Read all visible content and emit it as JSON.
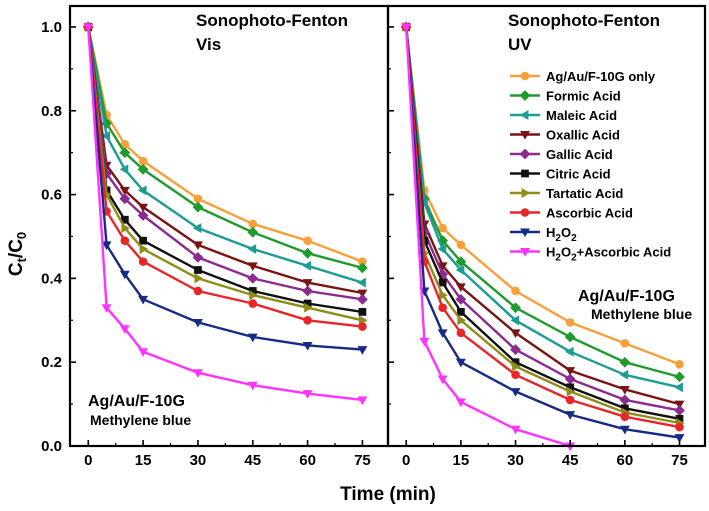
{
  "chart_data": {
    "type": "line",
    "ylabel": "C",
    "ylabel_sub1": "t",
    "ylabel_slash": "/C",
    "ylabel_sub2": "0",
    "xlabel": "Time (min)",
    "x": [
      0,
      5,
      10,
      15,
      30,
      45,
      60,
      75
    ],
    "xlim": [
      -5,
      82
    ],
    "ylim": [
      0,
      1.05
    ],
    "xticks": [
      "0",
      "15",
      "30",
      "45",
      "60",
      "75"
    ],
    "yticks": [
      "0.0",
      "0.2",
      "0.4",
      "0.6",
      "0.8",
      "1.0"
    ],
    "series_style": [
      {
        "color": "#f7a03a",
        "marker": "circle"
      },
      {
        "color": "#1e9b2c",
        "marker": "diamond"
      },
      {
        "color": "#1c9c95",
        "marker": "triangle-left"
      },
      {
        "color": "#7a1414",
        "marker": "triangle-down"
      },
      {
        "color": "#8b2a8f",
        "marker": "diamond"
      },
      {
        "color": "#111111",
        "marker": "square"
      },
      {
        "color": "#8d8d18",
        "marker": "triangle-right"
      },
      {
        "color": "#e8262a",
        "marker": "circle"
      },
      {
        "color": "#162a86",
        "marker": "triangle-down"
      },
      {
        "color": "#ff33ff",
        "marker": "triangle-down"
      }
    ],
    "legend": {
      "placement": "right panel, top-right",
      "entries": [
        {
          "text": "Ag/Au/F-10G only"
        },
        {
          "text": "Formic Acid"
        },
        {
          "text": "Maleic Acid"
        },
        {
          "text": "Oxallic Acid"
        },
        {
          "text": "Gallic Acid"
        },
        {
          "text": "Citric Acid"
        },
        {
          "text": "Tartatic Acid"
        },
        {
          "text": "Ascorbic Acid"
        },
        {
          "text": "H",
          "sub": "2",
          "rest": "O",
          "sub2": "2",
          "tail": ""
        },
        {
          "text": "H",
          "sub": "2",
          "rest": "O",
          "sub2": "2",
          "tail": "+Ascorbic Acid"
        }
      ]
    },
    "panels": [
      {
        "title_line1": "Sonophoto-Fenton",
        "title_line2": "Vis",
        "anno_line1": "Ag/Au/F-10G",
        "anno_line2": "Methylene blue",
        "series": [
          {
            "values": [
              1.0,
              0.79,
              0.72,
              0.68,
              0.59,
              0.53,
              0.49,
              0.44
            ]
          },
          {
            "values": [
              1.0,
              0.77,
              0.7,
              0.66,
              0.57,
              0.51,
              0.46,
              0.425
            ]
          },
          {
            "values": [
              1.0,
              0.74,
              0.66,
              0.61,
              0.52,
              0.47,
              0.43,
              0.39
            ]
          },
          {
            "values": [
              1.0,
              0.67,
              0.61,
              0.57,
              0.48,
              0.43,
              0.39,
              0.365
            ]
          },
          {
            "values": [
              1.0,
              0.65,
              0.59,
              0.55,
              0.45,
              0.4,
              0.37,
              0.35
            ]
          },
          {
            "values": [
              1.0,
              0.61,
              0.54,
              0.49,
              0.42,
              0.37,
              0.34,
              0.32
            ]
          },
          {
            "values": [
              1.0,
              0.6,
              0.52,
              0.47,
              0.4,
              0.36,
              0.33,
              0.3
            ]
          },
          {
            "values": [
              1.0,
              0.56,
              0.49,
              0.44,
              0.37,
              0.34,
              0.3,
              0.285
            ]
          },
          {
            "values": [
              1.0,
              0.48,
              0.41,
              0.35,
              0.295,
              0.26,
              0.24,
              0.23
            ]
          },
          {
            "values": [
              1.0,
              0.33,
              0.28,
              0.225,
              0.175,
              0.145,
              0.125,
              0.11
            ]
          }
        ]
      },
      {
        "title_line1": "Sonophoto-Fenton",
        "title_line2": "UV",
        "anno_line1": "Ag/Au/F-10G",
        "anno_line2": "Methylene blue",
        "series": [
          {
            "values": [
              1.0,
              0.61,
              0.52,
              0.48,
              0.37,
              0.295,
              0.245,
              0.195
            ]
          },
          {
            "values": [
              1.0,
              0.59,
              0.49,
              0.44,
              0.33,
              0.26,
              0.2,
              0.165
            ]
          },
          {
            "values": [
              1.0,
              0.58,
              0.47,
              0.42,
              0.3,
              0.225,
              0.17,
              0.14
            ]
          },
          {
            "values": [
              1.0,
              0.53,
              0.43,
              0.38,
              0.27,
              0.18,
              0.135,
              0.1
            ]
          },
          {
            "values": [
              1.0,
              0.51,
              0.41,
              0.35,
              0.23,
              0.16,
              0.11,
              0.085
            ]
          },
          {
            "values": [
              1.0,
              0.49,
              0.39,
              0.32,
              0.2,
              0.14,
              0.09,
              0.065
            ]
          },
          {
            "values": [
              1.0,
              0.46,
              0.36,
              0.3,
              0.19,
              0.13,
              0.08,
              0.055
            ]
          },
          {
            "values": [
              1.0,
              0.44,
              0.33,
              0.27,
              0.17,
              0.11,
              0.07,
              0.045
            ]
          },
          {
            "values": [
              1.0,
              0.37,
              0.27,
              0.2,
              0.13,
              0.075,
              0.04,
              0.02
            ]
          },
          {
            "values": [
              1.0,
              0.25,
              0.16,
              0.105,
              0.04,
              0.0
            ]
          }
        ]
      }
    ]
  }
}
